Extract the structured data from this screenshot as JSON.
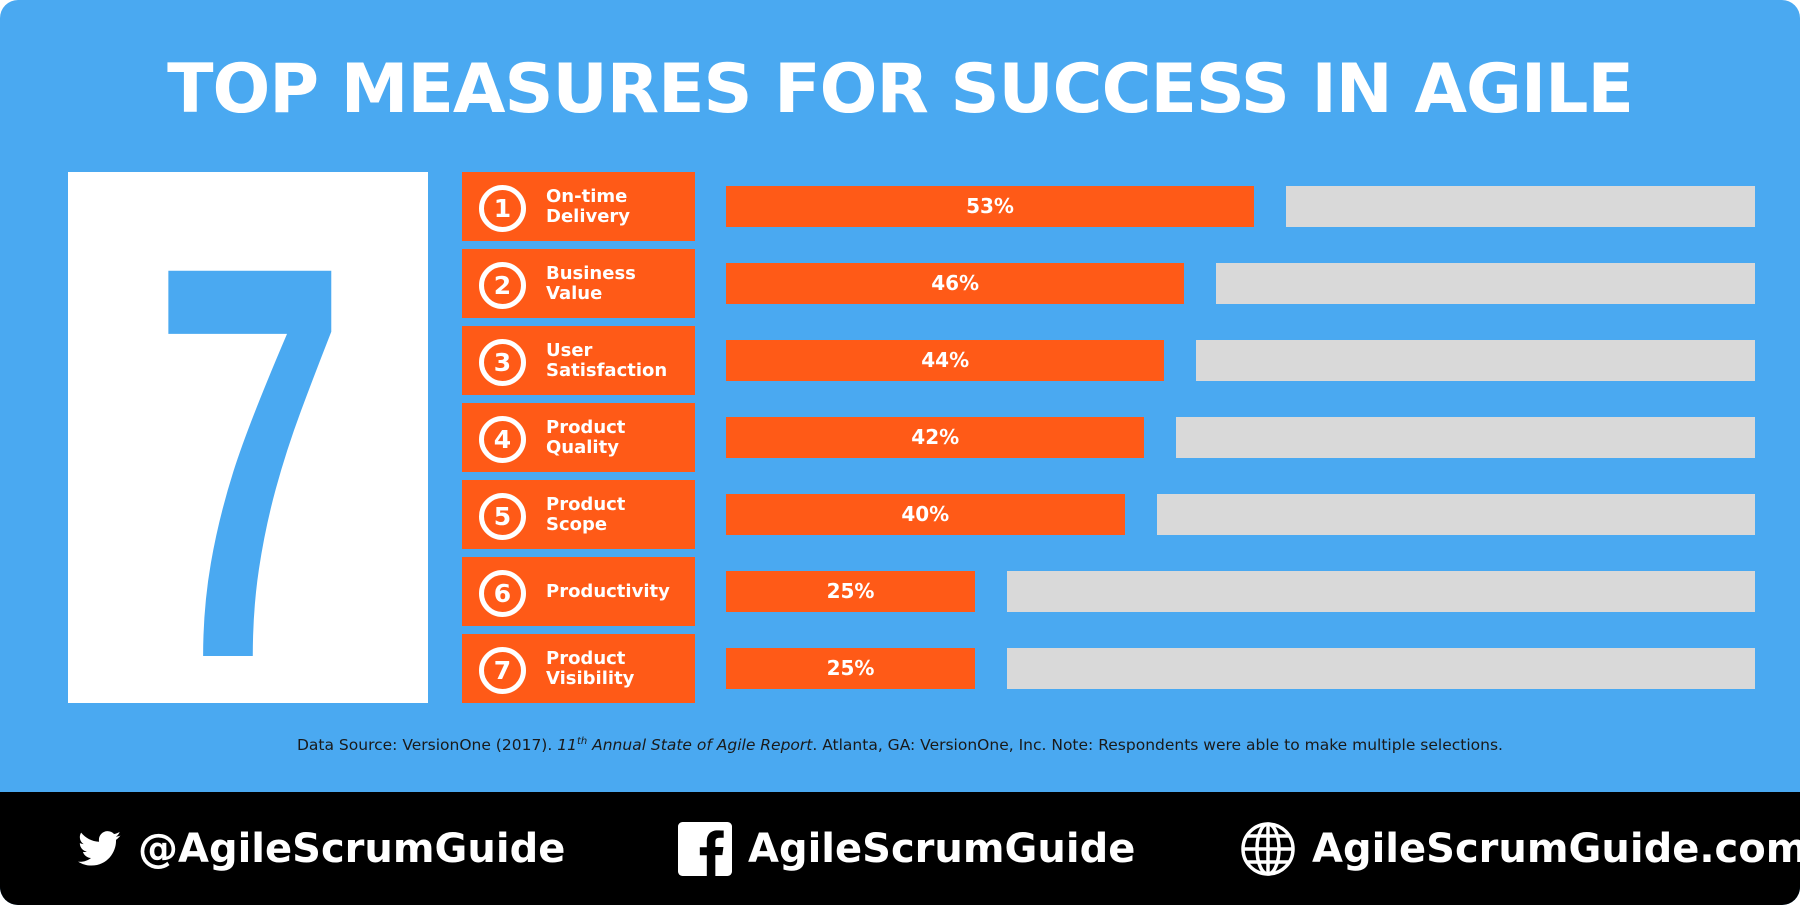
{
  "title": "TOP MEASURES FOR SUCCESS IN AGILE",
  "big_number": "7",
  "chart_data": {
    "type": "bar",
    "orientation": "horizontal",
    "categories": [
      "On-time\nDelivery",
      "Business\nValue",
      "User\nSatisfaction",
      "Product\nQuality",
      "Product\nScope",
      "Productivity",
      "Product\nVisibility"
    ],
    "ranks": [
      "1",
      "2",
      "3",
      "4",
      "5",
      "6",
      "7"
    ],
    "values": [
      53,
      46,
      44,
      42,
      40,
      25,
      25
    ],
    "value_labels": [
      "53%",
      "46%",
      "44%",
      "42%",
      "40%",
      "25%",
      "25%"
    ],
    "xlim": [
      0,
      100
    ],
    "grid": false,
    "legend": "none"
  },
  "source": {
    "prefix": "Data Source: VersionOne (2017). ",
    "edition_num": "11",
    "edition_sup": "th",
    "report_title": " Annual State of Agile Report",
    "suffix": ". Atlanta, GA: VersionOne, Inc. Note: Respondents were able to make multiple selections."
  },
  "footer": {
    "twitter": "@AgileScrumGuide",
    "facebook": "AgileScrumGuide",
    "website": "AgileScrumGuide.com"
  },
  "colors": {
    "background": "#4aa9f1",
    "accent": "#ff5a17",
    "track": "#d9d9d9",
    "footer": "#000000"
  }
}
